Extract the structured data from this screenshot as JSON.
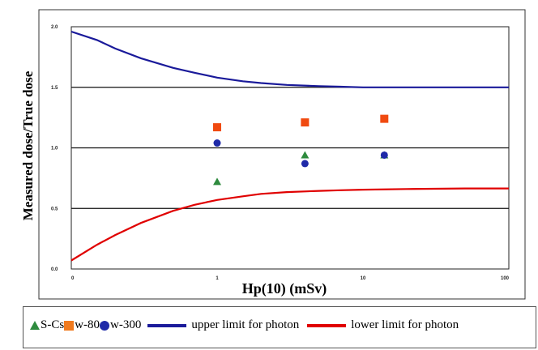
{
  "chart_data": {
    "type": "scatter",
    "xlabel": "Hp(10) (mSv)",
    "ylabel": "Measured dose/True dose",
    "x_scale": "log",
    "xlim": [
      0.1,
      100
    ],
    "ylim": [
      0.0,
      2.0
    ],
    "x_tick_labels": [
      "0",
      "1",
      "10",
      "100"
    ],
    "x_tick_values": [
      0.1,
      1,
      10,
      100
    ],
    "y_ticks": [
      0.0,
      0.5,
      1.0,
      1.5,
      2.0
    ],
    "y_tick_labels": [
      "0.0",
      "0.5",
      "1.0",
      "1.5",
      "2.0"
    ],
    "grid": "horizontal",
    "legend_position": "below",
    "series": [
      {
        "name": "S-Cs",
        "marker": "triangle",
        "color": "#2e8b3e",
        "points": [
          [
            1,
            0.72
          ],
          [
            4,
            0.94
          ],
          [
            14,
            0.94
          ]
        ]
      },
      {
        "name": "w-80",
        "marker": "square",
        "color": "#f04a10",
        "points": [
          [
            1,
            1.17
          ],
          [
            4,
            1.21
          ],
          [
            14,
            1.24
          ]
        ]
      },
      {
        "name": "w-300",
        "marker": "circle",
        "color": "#1f2aa8",
        "points": [
          [
            1,
            1.04
          ],
          [
            4,
            0.87
          ],
          [
            14,
            0.94
          ]
        ]
      }
    ],
    "curves": [
      {
        "name": "upper limit for photon",
        "color": "#1a1a9a",
        "points": [
          [
            0.1,
            1.96
          ],
          [
            0.15,
            1.89
          ],
          [
            0.2,
            1.82
          ],
          [
            0.3,
            1.74
          ],
          [
            0.5,
            1.66
          ],
          [
            0.7,
            1.62
          ],
          [
            1,
            1.58
          ],
          [
            1.5,
            1.55
          ],
          [
            2,
            1.535
          ],
          [
            3,
            1.52
          ],
          [
            5,
            1.51
          ],
          [
            7,
            1.505
          ],
          [
            10,
            1.5
          ],
          [
            20,
            1.5
          ],
          [
            50,
            1.5
          ],
          [
            100,
            1.5
          ]
        ]
      },
      {
        "name": "lower limit for photon",
        "color": "#e00000",
        "points": [
          [
            0.1,
            0.07
          ],
          [
            0.15,
            0.2
          ],
          [
            0.2,
            0.28
          ],
          [
            0.3,
            0.38
          ],
          [
            0.5,
            0.48
          ],
          [
            0.7,
            0.53
          ],
          [
            1,
            0.57
          ],
          [
            1.5,
            0.6
          ],
          [
            2,
            0.62
          ],
          [
            3,
            0.635
          ],
          [
            5,
            0.645
          ],
          [
            7,
            0.65
          ],
          [
            10,
            0.655
          ],
          [
            20,
            0.66
          ],
          [
            50,
            0.665
          ],
          [
            100,
            0.665
          ]
        ]
      }
    ]
  }
}
